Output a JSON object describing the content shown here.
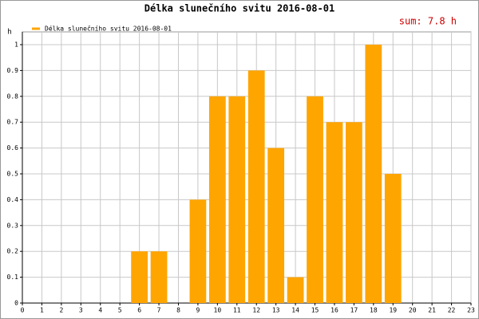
{
  "chart_data": {
    "type": "bar",
    "title": "Délka slunečního svitu 2016-08-01",
    "y_label": "h",
    "annotation": "sum: 7.8 h",
    "series": [
      {
        "name": "Délka slunečního svitu 2016-08-01",
        "color": "#ffa500",
        "x": [
          6,
          7,
          9,
          10,
          11,
          12,
          13,
          14,
          15,
          16,
          17,
          18,
          19
        ],
        "values": [
          0.2,
          0.2,
          0.4,
          0.8,
          0.8,
          0.9,
          0.6,
          0.1,
          0.8,
          0.7,
          0.7,
          1,
          0.5
        ]
      }
    ],
    "xlim": [
      0,
      23
    ],
    "xticks": [
      0,
      1,
      2,
      3,
      4,
      5,
      6,
      7,
      8,
      9,
      10,
      11,
      12,
      13,
      14,
      15,
      16,
      17,
      18,
      19,
      20,
      21,
      22,
      23
    ],
    "ylim": [
      0,
      1
    ],
    "yticks": [
      0,
      0.1,
      0.2,
      0.3,
      0.4,
      0.5,
      0.6,
      0.7,
      0.8,
      0.9,
      1
    ],
    "grid": true,
    "legend": "top-left"
  }
}
